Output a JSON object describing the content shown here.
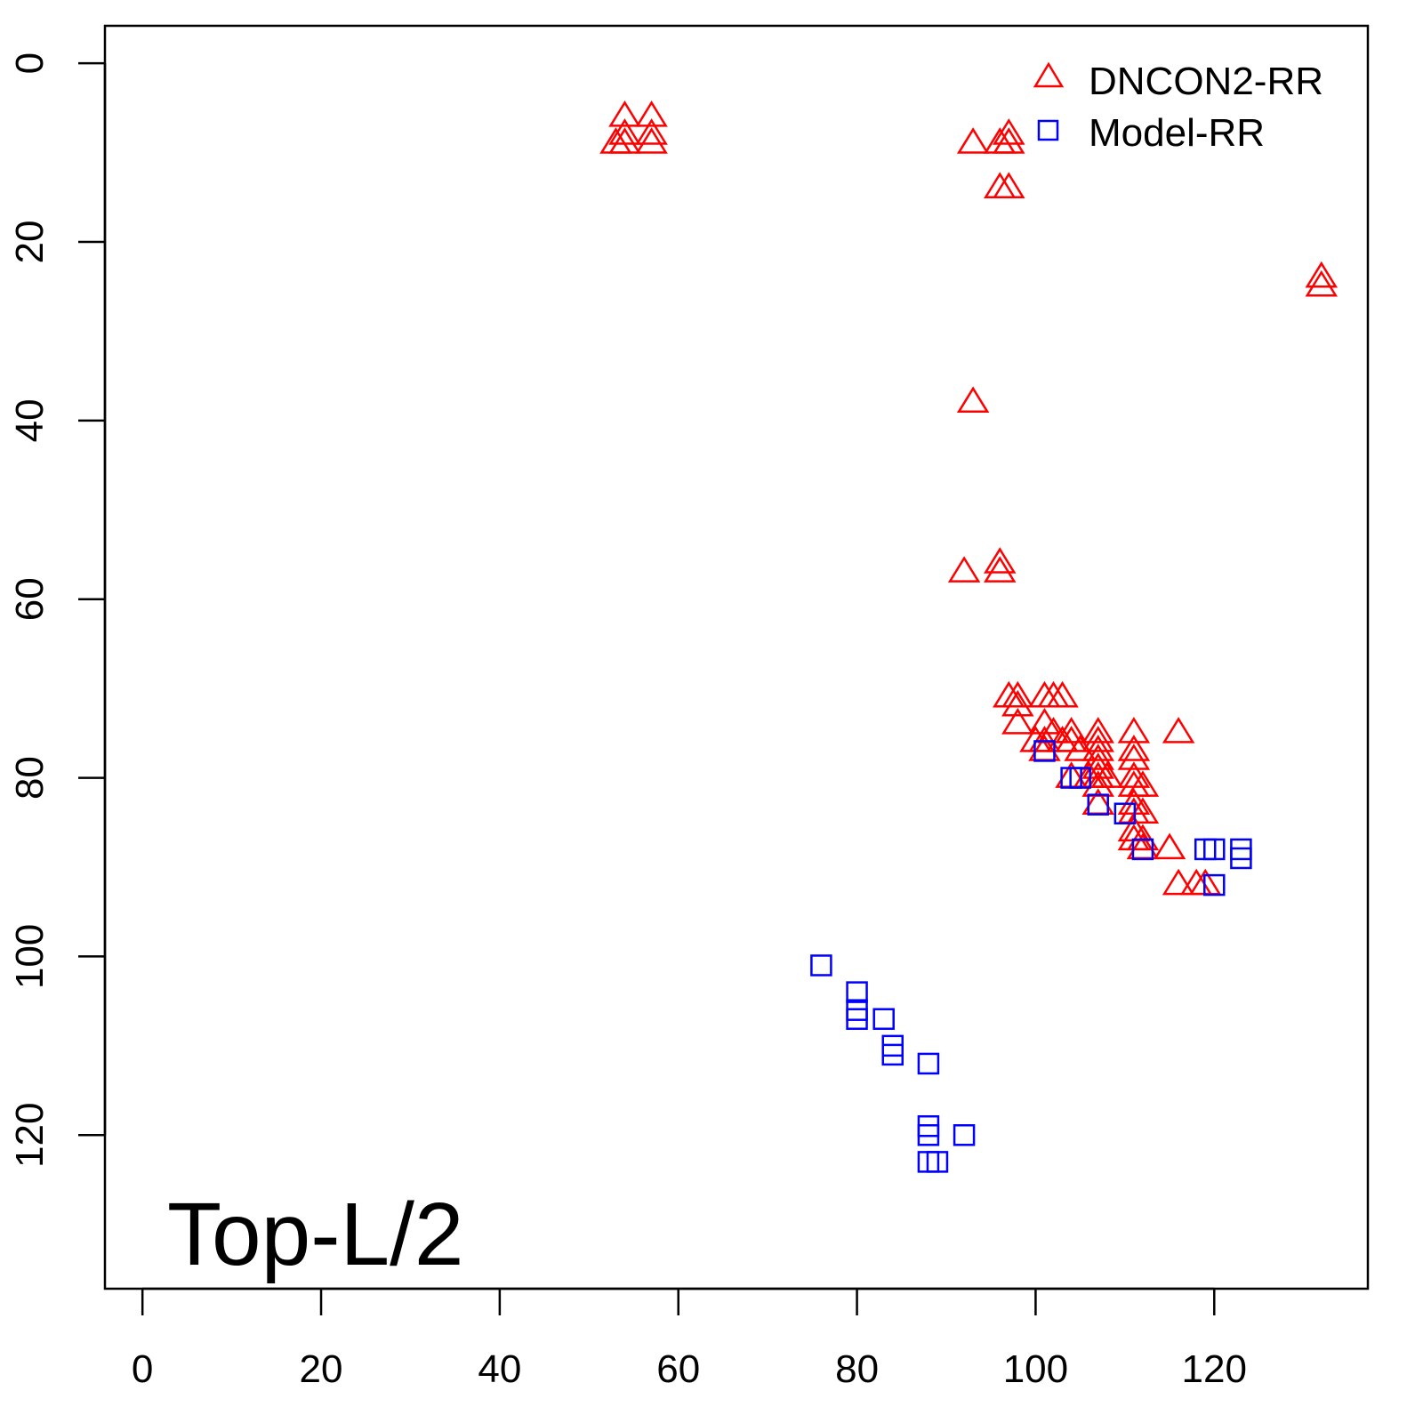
{
  "chart_data": {
    "type": "scatter",
    "title": "",
    "xlabel": "",
    "ylabel": "",
    "xlim": [
      -4.2,
      137.2
    ],
    "ylim": [
      137.2,
      -4.2
    ],
    "y_axis_inverted": true,
    "grid": false,
    "x_ticks": [
      "0",
      "20",
      "40",
      "60",
      "80",
      "100",
      "120"
    ],
    "y_ticks": [
      "0",
      "20",
      "40",
      "60",
      "80",
      "100",
      "120"
    ],
    "annotation": "Top-L/2",
    "legend": {
      "placement": "top-right"
    },
    "series": [
      {
        "name": "DNCON2-RR",
        "marker": "triangle",
        "color": "#ff0000",
        "points": [
          [
            54,
            6
          ],
          [
            57,
            6
          ],
          [
            54,
            8
          ],
          [
            57,
            8
          ],
          [
            53,
            9
          ],
          [
            54,
            9
          ],
          [
            57,
            9
          ],
          [
            93,
            9
          ],
          [
            96,
            9
          ],
          [
            97,
            8
          ],
          [
            97,
            9
          ],
          [
            96,
            14
          ],
          [
            97,
            14
          ],
          [
            132,
            24
          ],
          [
            132,
            25
          ],
          [
            93,
            38
          ],
          [
            92,
            57
          ],
          [
            96,
            56
          ],
          [
            96,
            57
          ],
          [
            97,
            71
          ],
          [
            98,
            71
          ],
          [
            101,
            71
          ],
          [
            102,
            71
          ],
          [
            103,
            71
          ],
          [
            98,
            72
          ],
          [
            98,
            74
          ],
          [
            101,
            74
          ],
          [
            100,
            76
          ],
          [
            101,
            76
          ],
          [
            102,
            75
          ],
          [
            103,
            76
          ],
          [
            104,
            75
          ],
          [
            104,
            76
          ],
          [
            107,
            75
          ],
          [
            107,
            76
          ],
          [
            107,
            77
          ],
          [
            111,
            75
          ],
          [
            116,
            75
          ],
          [
            101,
            77
          ],
          [
            105,
            77
          ],
          [
            107,
            78
          ],
          [
            111,
            77
          ],
          [
            111,
            78
          ],
          [
            104,
            80
          ],
          [
            106,
            80
          ],
          [
            107,
            79
          ],
          [
            107,
            80
          ],
          [
            108,
            80
          ],
          [
            107,
            81
          ],
          [
            111,
            80
          ],
          [
            111,
            81
          ],
          [
            112,
            81
          ],
          [
            107,
            83
          ],
          [
            111,
            83
          ],
          [
            111,
            84
          ],
          [
            112,
            84
          ],
          [
            111,
            86
          ],
          [
            111,
            87
          ],
          [
            112,
            87
          ],
          [
            112,
            88
          ],
          [
            115,
            88
          ],
          [
            116,
            92
          ],
          [
            118,
            92
          ],
          [
            119,
            92
          ]
        ]
      },
      {
        "name": "Model-RR",
        "marker": "square",
        "color": "#0000ff",
        "points": [
          [
            101,
            77
          ],
          [
            104,
            80
          ],
          [
            105,
            80
          ],
          [
            107,
            83
          ],
          [
            110,
            84
          ],
          [
            112,
            88
          ],
          [
            119,
            88
          ],
          [
            120,
            88
          ],
          [
            123,
            88
          ],
          [
            123,
            89
          ],
          [
            120,
            92
          ],
          [
            76,
            101
          ],
          [
            80,
            104
          ],
          [
            80,
            106
          ],
          [
            80,
            107
          ],
          [
            83,
            107
          ],
          [
            84,
            110
          ],
          [
            84,
            111
          ],
          [
            88,
            112
          ],
          [
            88,
            119
          ],
          [
            88,
            120
          ],
          [
            92,
            120
          ],
          [
            88,
            123
          ],
          [
            89,
            123
          ]
        ]
      }
    ]
  }
}
